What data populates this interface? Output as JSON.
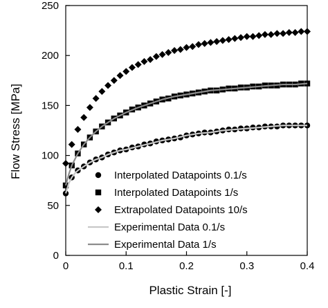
{
  "chart_data": {
    "type": "scatter",
    "title": "",
    "xlabel": "Plastic Strain [-]",
    "ylabel": "Flow Stress [MPa]",
    "xlim": [
      0,
      0.4
    ],
    "ylim": [
      0,
      250
    ],
    "x_ticks": [
      0,
      0.1,
      0.2,
      0.3,
      0.4
    ],
    "x_tick_labels": [
      "0",
      "0.1",
      "0.2",
      "0.3",
      "0.4"
    ],
    "y_ticks": [
      0,
      50,
      100,
      150,
      200,
      250
    ],
    "y_tick_labels": [
      "0",
      "50",
      "100",
      "150",
      "200",
      "250"
    ],
    "grid": false,
    "legend_position": "bottom-right",
    "series": [
      {
        "name": "Interpolated Datapoints 0.1/s",
        "style": "marker",
        "marker": "circle",
        "color": "#000000",
        "x": [
          0,
          0.01,
          0.02,
          0.03,
          0.04,
          0.05,
          0.06,
          0.07,
          0.08,
          0.09,
          0.1,
          0.11,
          0.12,
          0.13,
          0.14,
          0.15,
          0.16,
          0.17,
          0.18,
          0.19,
          0.2,
          0.21,
          0.22,
          0.23,
          0.24,
          0.25,
          0.26,
          0.27,
          0.28,
          0.29,
          0.3,
          0.31,
          0.32,
          0.33,
          0.34,
          0.35,
          0.36,
          0.37,
          0.38,
          0.39,
          0.4
        ],
        "y": [
          62,
          78,
          85,
          89,
          93,
          96,
          98,
          101,
          103,
          105,
          106,
          108,
          109,
          111,
          112,
          114,
          115,
          116,
          117,
          118,
          120,
          121,
          122,
          123,
          123,
          124,
          125,
          126,
          126,
          127,
          127,
          128,
          128,
          129,
          129,
          129,
          130,
          130,
          130,
          130,
          130
        ]
      },
      {
        "name": "Interpolated Datapoints 1/s",
        "style": "marker",
        "marker": "square",
        "color": "#000000",
        "x": [
          0,
          0.01,
          0.02,
          0.03,
          0.04,
          0.05,
          0.06,
          0.07,
          0.08,
          0.09,
          0.1,
          0.11,
          0.12,
          0.13,
          0.14,
          0.15,
          0.16,
          0.17,
          0.18,
          0.19,
          0.2,
          0.21,
          0.22,
          0.23,
          0.24,
          0.25,
          0.26,
          0.27,
          0.28,
          0.29,
          0.3,
          0.31,
          0.32,
          0.33,
          0.34,
          0.35,
          0.36,
          0.37,
          0.38,
          0.39,
          0.4
        ],
        "y": [
          70,
          90,
          102,
          111,
          118,
          124,
          129,
          133,
          137,
          140,
          143,
          146,
          148,
          150,
          152,
          154,
          156,
          157,
          159,
          160,
          161,
          162,
          163,
          164,
          165,
          165,
          166,
          167,
          167,
          168,
          168,
          169,
          169,
          170,
          170,
          170,
          171,
          171,
          171,
          172,
          172
        ]
      },
      {
        "name": "Extrapolated Datapoints 10/s",
        "style": "marker",
        "marker": "diamond",
        "color": "#000000",
        "x": [
          0,
          0.01,
          0.02,
          0.03,
          0.04,
          0.05,
          0.06,
          0.07,
          0.08,
          0.09,
          0.1,
          0.11,
          0.12,
          0.13,
          0.14,
          0.15,
          0.16,
          0.17,
          0.18,
          0.19,
          0.2,
          0.21,
          0.22,
          0.23,
          0.24,
          0.25,
          0.26,
          0.27,
          0.28,
          0.29,
          0.3,
          0.31,
          0.32,
          0.33,
          0.34,
          0.35,
          0.36,
          0.37,
          0.38,
          0.39,
          0.4
        ],
        "y": [
          92,
          111,
          126,
          138,
          148,
          157,
          164,
          170,
          175,
          180,
          184,
          188,
          191,
          194,
          196,
          199,
          201,
          203,
          205,
          206,
          208,
          209,
          211,
          212,
          213,
          214,
          215,
          216,
          217,
          218,
          219,
          219,
          220,
          221,
          221,
          222,
          222,
          223,
          223,
          224,
          224
        ]
      },
      {
        "name": "Experimental Data 0.1/s",
        "style": "line",
        "color": "#c8c8c8",
        "x": [
          0,
          0.005,
          0.01,
          0.015,
          0.02,
          0.03,
          0.04,
          0.05,
          0.06,
          0.07,
          0.08,
          0.09,
          0.1,
          0.12,
          0.14,
          0.16,
          0.18,
          0.2,
          0.22,
          0.24,
          0.26,
          0.28,
          0.3,
          0.32,
          0.34,
          0.36,
          0.38,
          0.4
        ],
        "y": [
          62,
          72,
          78,
          82,
          85,
          89,
          93,
          96,
          98,
          101,
          103,
          105,
          106,
          109,
          112,
          115,
          117,
          120,
          122,
          123,
          125,
          126,
          127,
          128,
          129,
          130,
          130,
          130
        ]
      },
      {
        "name": "Experimental Data 1/s",
        "style": "line",
        "color": "#8c8c8c",
        "x": [
          0,
          0.005,
          0.01,
          0.015,
          0.02,
          0.03,
          0.04,
          0.05,
          0.06,
          0.07,
          0.08,
          0.09,
          0.1,
          0.12,
          0.14,
          0.16,
          0.18,
          0.2,
          0.22,
          0.24,
          0.26,
          0.28,
          0.3,
          0.32,
          0.34,
          0.36,
          0.38,
          0.4
        ],
        "y": [
          70,
          81,
          90,
          96,
          102,
          111,
          118,
          124,
          129,
          133,
          137,
          140,
          143,
          148,
          152,
          156,
          159,
          161,
          163,
          165,
          166,
          167,
          168,
          169,
          170,
          171,
          171,
          172
        ]
      }
    ]
  }
}
